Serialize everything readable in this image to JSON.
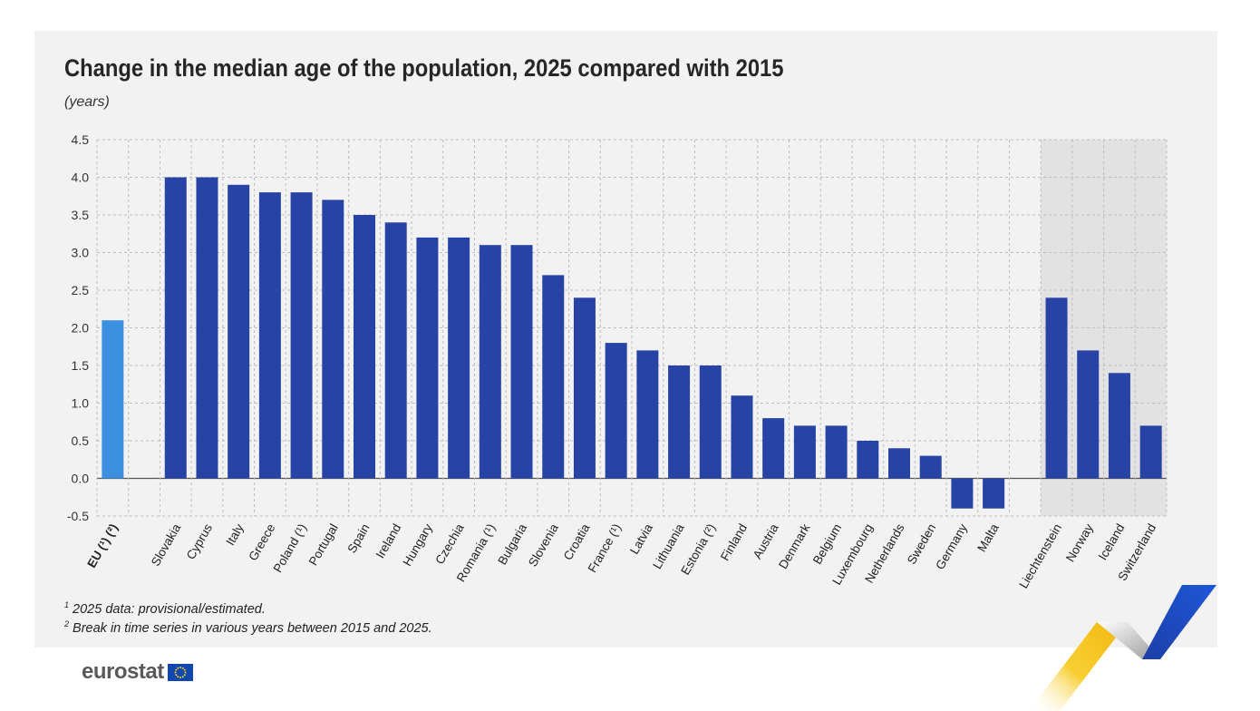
{
  "title": "Change in the median age of the population, 2025 compared with 2015",
  "unit": "(years)",
  "footnotes": [
    {
      "mark": "1",
      "text": "2025 data: provisional/estimated."
    },
    {
      "mark": "2",
      "text": "Break in time series in various years between 2015 and 2025."
    }
  ],
  "logo": {
    "text": "eurostat",
    "flag_icon": "eu-flag-icon"
  },
  "colors": {
    "eu_bar": "#3d8fe0",
    "country_bar": "#2743a6",
    "efta_band": "#e2e2e2",
    "panel": "#f2f2f2",
    "grid": "#bdbdbd"
  },
  "chart_data": {
    "type": "bar",
    "title": "Change in the median age of the population, 2025 compared with 2015",
    "ylabel": "(years)",
    "xlabel": "",
    "ylim": [
      -0.5,
      4.5
    ],
    "yticks": [
      "4.5",
      "4.0",
      "3.5",
      "3.0",
      "2.5",
      "2.0",
      "1.5",
      "1.0",
      "0.5",
      "0.0",
      "-0.5"
    ],
    "grid": true,
    "categories": [
      {
        "label": "EU (¹) (²)",
        "value": 2.1,
        "group": "eu"
      },
      {
        "label": "",
        "value": null,
        "group": "gap"
      },
      {
        "label": "Slovakia",
        "value": 4.0,
        "group": "country"
      },
      {
        "label": "Cyprus",
        "value": 4.0,
        "group": "country"
      },
      {
        "label": "Italy",
        "value": 3.9,
        "group": "country"
      },
      {
        "label": "Greece",
        "value": 3.8,
        "group": "country"
      },
      {
        "label": "Poland (¹)",
        "value": 3.8,
        "group": "country"
      },
      {
        "label": "Portugal",
        "value": 3.7,
        "group": "country"
      },
      {
        "label": "Spain",
        "value": 3.5,
        "group": "country"
      },
      {
        "label": "Ireland",
        "value": 3.4,
        "group": "country"
      },
      {
        "label": "Hungary",
        "value": 3.2,
        "group": "country"
      },
      {
        "label": "Czechia",
        "value": 3.2,
        "group": "country"
      },
      {
        "label": "Romania (¹)",
        "value": 3.1,
        "group": "country"
      },
      {
        "label": "Bulgaria",
        "value": 3.1,
        "group": "country"
      },
      {
        "label": "Slovenia",
        "value": 2.7,
        "group": "country"
      },
      {
        "label": "Croatia",
        "value": 2.4,
        "group": "country"
      },
      {
        "label": "France (¹)",
        "value": 1.8,
        "group": "country"
      },
      {
        "label": "Latvia",
        "value": 1.7,
        "group": "country"
      },
      {
        "label": "Lithuania",
        "value": 1.5,
        "group": "country"
      },
      {
        "label": "Estonia (²)",
        "value": 1.5,
        "group": "country"
      },
      {
        "label": "Finland",
        "value": 1.1,
        "group": "country"
      },
      {
        "label": "Austria",
        "value": 0.8,
        "group": "country"
      },
      {
        "label": "Denmark",
        "value": 0.7,
        "group": "country"
      },
      {
        "label": "Belgium",
        "value": 0.7,
        "group": "country"
      },
      {
        "label": "Luxembourg",
        "value": 0.5,
        "group": "country"
      },
      {
        "label": "Netherlands",
        "value": 0.4,
        "group": "country"
      },
      {
        "label": "Sweden",
        "value": 0.3,
        "group": "country"
      },
      {
        "label": "Germany",
        "value": -0.4,
        "group": "country"
      },
      {
        "label": "Malta",
        "value": -0.4,
        "group": "country"
      },
      {
        "label": "",
        "value": null,
        "group": "gap"
      },
      {
        "label": "Liechtenstein",
        "value": 2.4,
        "group": "efta"
      },
      {
        "label": "Norway",
        "value": 1.7,
        "group": "efta"
      },
      {
        "label": "Iceland",
        "value": 1.4,
        "group": "efta"
      },
      {
        "label": "Switzerland",
        "value": 0.7,
        "group": "efta"
      }
    ]
  }
}
